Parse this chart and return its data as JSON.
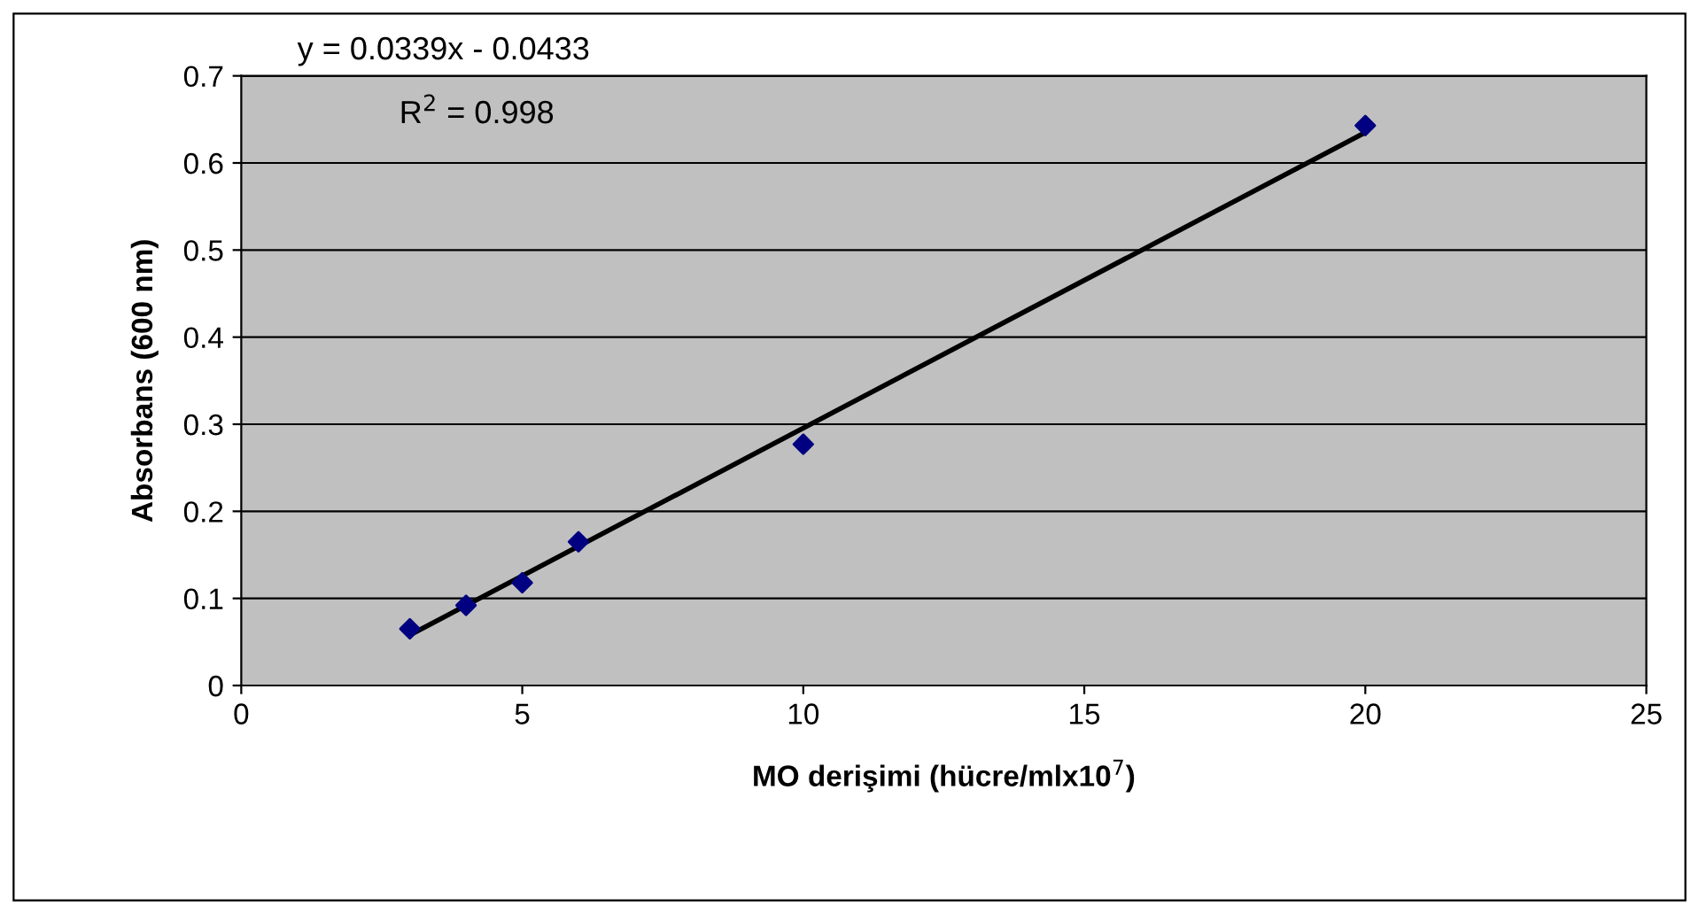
{
  "chart_data": {
    "type": "scatter",
    "xlabel": "MO derişimi (hücre/mlx10$^{7}$)",
    "ylabel": "Absorbans (600 nm)",
    "annotations": [
      "y = 0.0339x - 0.0433",
      "R$^{2}$ = 0.998"
    ],
    "series": [
      {
        "color": "#000080",
        "x": [
          3,
          4,
          5,
          6,
          10,
          20
        ],
        "values": [
          0.065,
          0.092,
          0.118,
          0.165,
          0.277,
          0.643
        ],
        "marker": "diamond"
      },
      {
        "type": "line",
        "color": "#000000",
        "x": [
          3,
          20
        ],
        "values": [
          0.058,
          0.635
        ],
        "marker": "none",
        "line_style": "solid"
      }
    ],
    "xlim": [
      0,
      25
    ],
    "xticks": [
      0,
      5,
      10,
      15,
      20,
      25
    ],
    "ylim": [
      0,
      0.7
    ],
    "yticks": [
      0,
      0.1,
      0.2,
      0.3,
      0.4,
      0.5,
      0.6,
      0.7
    ],
    "grid": "y",
    "legend": false
  }
}
